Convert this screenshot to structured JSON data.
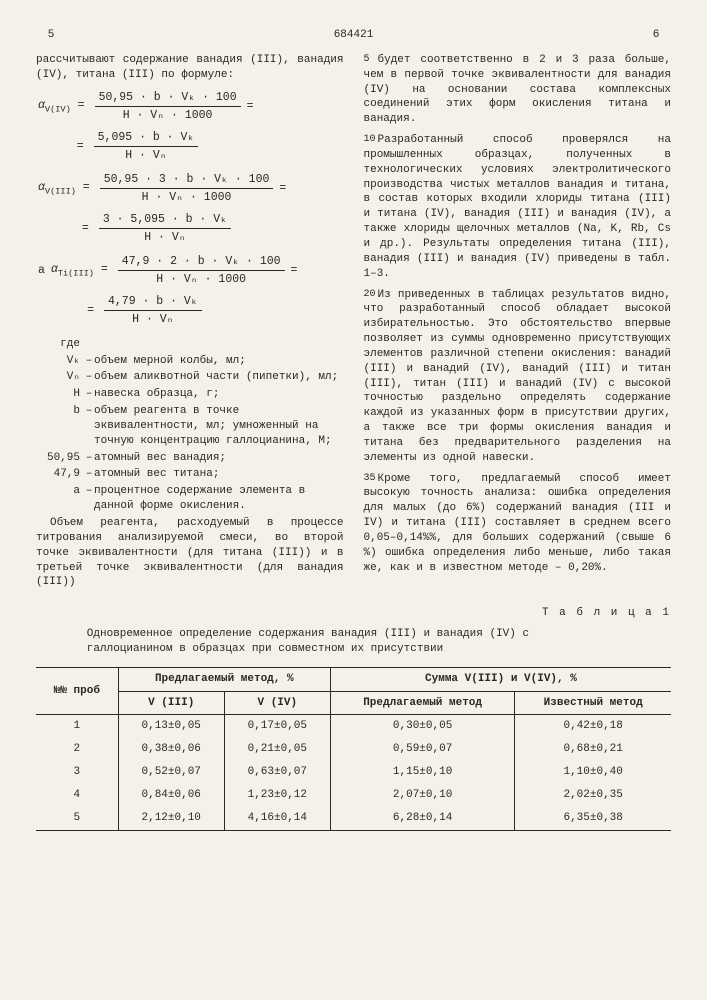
{
  "header": {
    "page_left": "5",
    "patent_number": "684421",
    "page_right": "6"
  },
  "col_left": {
    "intro": "рассчитывают содержание ванадия (III), ванадия (IV), титана (III) по формуле:",
    "formulas": [
      {
        "sym": "α",
        "sub": "V(IV)",
        "num_a": "50,95 · b · Vₖ · 100",
        "den_a": "H · Vₙ · 1000",
        "num_b": "5,095 · b · Vₖ",
        "den_b": "H · Vₙ"
      },
      {
        "sym": "α",
        "sub": "V(III)",
        "num_a": "50,95 · 3 · b · Vₖ · 100",
        "den_a": "H · Vₙ · 1000",
        "num_b": "3 · 5,095 · b · Vₖ",
        "den_b": "H · Vₙ"
      },
      {
        "prefix": "а",
        "sym": "α",
        "sub": "Ti(III)",
        "num_a": "47,9 · 2 · b · Vₖ · 100",
        "den_a": "H · Vₙ · 1000",
        "num_b": "4,79 · b · Vₖ",
        "den_b": "H · Vₙ"
      }
    ],
    "where_label": "где",
    "where": [
      {
        "k": "Vₖ",
        "v": "объем мерной колбы, мл;"
      },
      {
        "k": "Vₙ",
        "v": "объем аликвотной части (пипетки), мл;"
      },
      {
        "k": "H",
        "v": "навеска образца, г;"
      },
      {
        "k": "b",
        "v": "объем реагента в точке эквивалентности, мл; умноженный на точную концентрацию галлоцианина, М;"
      },
      {
        "k": "50,95",
        "v": "атомный вес ванадия;"
      },
      {
        "k": "47,9",
        "v": "атомный вес титана;"
      },
      {
        "k": "а",
        "v": "процентное содержание элемента в данной форме окисления."
      }
    ],
    "tail": "Объем реагента, расходуемый в процессе титрования анализируемой смеси, во второй точке эквивалентности (для титана (III)) и в третьей точке эквивалентности (для ванадия (III))"
  },
  "col_right": {
    "linenums": [
      "5",
      "10",
      "15",
      "20",
      "25",
      "30",
      "35",
      "40"
    ],
    "p1": "будет соответственно в 2 и 3 раза больше, чем в первой точке эквивалентности для ванадия (IV) на основании состава комплексных соединений этих форм окисления титана и ванадия.",
    "p2": "Разработанный способ проверялся на промышленных образцах, полученных в технологических условиях электролитического производства чистых металлов ванадия и титана, в состав которых входили хлориды титана (III) и титана (IV), ванадия (III) и ванадия (IV), а также хлориды щелочных металлов (Na, K, Rb, Cs и др.). Результаты определения титана (III), ванадия (III) и ванадия (IV) приведены в табл. 1–3.",
    "p3": "Из приведенных в таблицах результатов видно, что разработанный способ обладает высокой избирательностью. Это обстоятельство впервые позволяет из суммы одновременно присутствующих элементов различной степени окисления: ванадий (III) и ванадий (IV), ванадий (III) и титан (III), титан (III) и ванадий (IV) с высокой точностью раздельно определять содержание каждой из указанных форм в присутствии других, а также все три формы окисления ванадия и титана без предварительного разделения на элементы из одной навески.",
    "p4": "Кроме того, предлагаемый способ имеет высокую точность анализа: ошибка определения для малых (до 6%) содержаний ванадия (III и IV) и титана (III) составляет в среднем всего 0,05–0,14%%, для больших содержаний (свыше 6 %) ошибка определения либо меньше, либо такая же, как и в известном методе – 0,20%."
  },
  "table": {
    "caption": "Т а б л и ц а  1",
    "title": "Одновременное определение содержания ванадия (III) и ванадия (IV) с галлоцианином в образцах при совместном их присутствии",
    "head_rownum": "№№ проб",
    "head_proposed": "Предлагаемый метод, %",
    "head_sum": "Сумма  V(III) и V(IV), %",
    "sub_v3": "V (III)",
    "sub_v4": "V (IV)",
    "sub_prop": "Предлагаемый метод",
    "sub_known": "Известный метод",
    "rows": [
      {
        "n": "1",
        "v3": "0,13±0,05",
        "v4": "0,17±0,05",
        "sp": "0,30±0,05",
        "sk": "0,42±0,18"
      },
      {
        "n": "2",
        "v3": "0,38±0,06",
        "v4": "0,21±0,05",
        "sp": "0,59±0,07",
        "sk": "0,68±0,21"
      },
      {
        "n": "3",
        "v3": "0,52±0,07",
        "v4": "0,63±0,07",
        "sp": "1,15±0,10",
        "sk": "1,10±0,40"
      },
      {
        "n": "4",
        "v3": "0,84±0,06",
        "v4": "1,23±0,12",
        "sp": "2,07±0,10",
        "sk": "2,02±0,35"
      },
      {
        "n": "5",
        "v3": "2,12±0,10",
        "v4": "4,16±0,14",
        "sp": "6,28±0,14",
        "sk": "6,35±0,38"
      }
    ]
  }
}
